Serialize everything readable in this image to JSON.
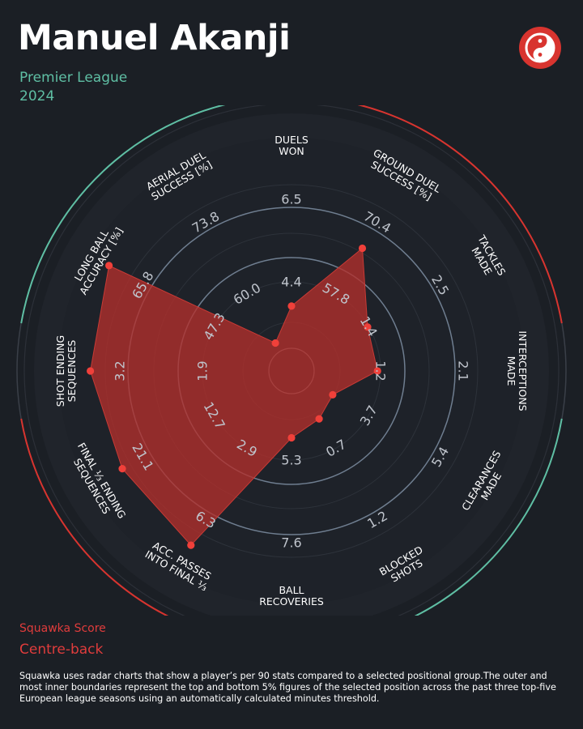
{
  "header": {
    "player": "Manuel Akanji",
    "league": "Premier League",
    "season": "2024",
    "logo_icon": "squawka-logo-icon"
  },
  "footer": {
    "score_label": "Squawka Score",
    "position": "Centre-back",
    "note": "Squawka uses radar charts that show a player’s per 90 stats compared to a selected positional group.The outer and most inner boundaries represent the top and bottom 5% figures of the selected position across the past three top-five European league seasons using an automatically calculated minutes threshold."
  },
  "colors": {
    "background": "#1b1f25",
    "accent_red": "#d8342f",
    "accent_green": "#5fbfa4",
    "polygon_fill": "#b4302c",
    "point": "#f0403a"
  },
  "chart_data": {
    "type": "radar",
    "axes": [
      {
        "label": [
          "DUELS",
          "WON"
        ],
        "ticks": [
          "4.4",
          "6.5"
        ],
        "value": 0.22
      },
      {
        "label": [
          "GROUND DUEL",
          "SUCCESS [%]"
        ],
        "ticks": [
          "57.8",
          "70.4"
        ],
        "value": 0.62
      },
      {
        "label": [
          "TACKLES",
          "MADE"
        ],
        "ticks": [
          "1.4",
          "2.5"
        ],
        "value": 0.34
      },
      {
        "label": [
          "INTERCEPTIONS",
          "MADE"
        ],
        "ticks": [
          "1.2",
          "2.1"
        ],
        "value": 0.33
      },
      {
        "label": [
          "CLEARANCES",
          "MADE"
        ],
        "ticks": [
          "3.7",
          "5.4"
        ],
        "value": 0.13
      },
      {
        "label": [
          "BLOCKED",
          "SHOTS"
        ],
        "ticks": [
          "0.7",
          "1.2"
        ],
        "value": 0.17
      },
      {
        "label": [
          "BALL",
          "RECOVERIES"
        ],
        "ticks": [
          "5.3",
          "7.6"
        ],
        "value": 0.23
      },
      {
        "label": [
          "ACC. PASSES",
          "INTO FINAL ⅓"
        ],
        "ticks": [
          "2.9",
          "6.3"
        ],
        "value": 0.93
      },
      {
        "label": [
          "FINAL ⅓ ENDING",
          "SEQUENCES"
        ],
        "ticks": [
          "12.7",
          "21.1"
        ],
        "value": 0.9
      },
      {
        "label": [
          "SHOT ENDING",
          "SEQUENCES"
        ],
        "ticks": [
          "1.9",
          "3.2"
        ],
        "value": 0.93
      },
      {
        "label": [
          "LONG BALL",
          "ACCURACY [%]"
        ],
        "ticks": [
          "47.3",
          "65.8"
        ],
        "value": 0.98
      },
      {
        "label": [
          "AERIAL DUEL",
          "SUCCESS [%]"
        ],
        "ticks": [
          "60.0",
          "73.8"
        ],
        "value": 0.05
      }
    ]
  }
}
